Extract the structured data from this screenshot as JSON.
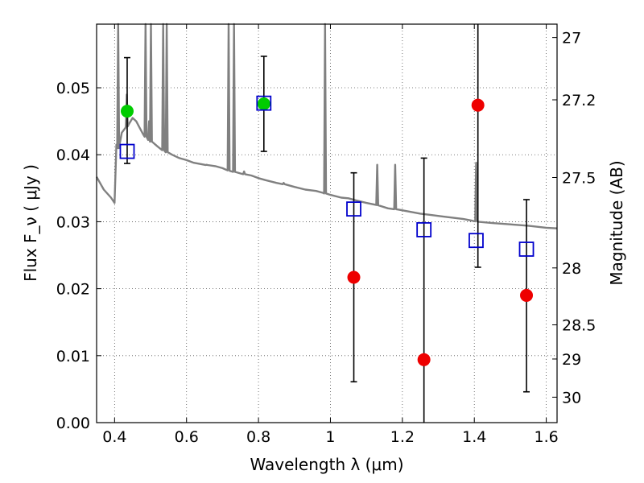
{
  "chart_data": {
    "type": "scatter",
    "xlabel": "Wavelength  λ (μm)",
    "ylabel": "Flux  F_ν  ( μJy )",
    "ylabel_right": "Magnitude (AB)",
    "xlim": [
      0.35,
      1.63
    ],
    "ylim": [
      0.0,
      0.0595
    ],
    "grid": true,
    "x_ticks": [
      0.4,
      0.6,
      0.8,
      1.0,
      1.2,
      1.4,
      1.6
    ],
    "x_tick_labels": [
      "0.4",
      "0.6",
      "0.8",
      "1",
      "1.2",
      "1.4",
      "1.6"
    ],
    "y_ticks": [
      0.0,
      0.01,
      0.02,
      0.03,
      0.04,
      0.05
    ],
    "y_tick_labels": [
      "0.00",
      "0.01",
      "0.02",
      "0.03",
      "0.04",
      "0.05"
    ],
    "right_ticks": [
      {
        "label": "27",
        "flux": 0.0575
      },
      {
        "label": "27.2",
        "flux": 0.0482
      },
      {
        "label": "27.5",
        "flux": 0.0366
      },
      {
        "label": "28",
        "flux": 0.0231
      },
      {
        "label": "28.5",
        "flux": 0.0146
      },
      {
        "label": "29",
        "flux": 0.0095
      },
      {
        "label": "30",
        "flux": 0.0038
      }
    ],
    "colors": {
      "model": "#808080",
      "detection": "#00cc00",
      "upper": "#ee0000",
      "model_point": "#0000cc",
      "errorbar": "#000000",
      "grid": "#555555"
    },
    "model_spectrum": {
      "x": [
        0.35,
        0.37,
        0.39,
        0.4,
        0.405,
        0.41,
        0.415,
        0.42,
        0.43,
        0.44,
        0.45,
        0.46,
        0.47,
        0.48,
        0.5,
        0.52,
        0.54,
        0.56,
        0.58,
        0.6,
        0.62,
        0.65,
        0.68,
        0.7,
        0.72,
        0.75,
        0.78,
        0.8,
        0.82,
        0.85,
        0.88,
        0.9,
        0.93,
        0.96,
        0.98,
        1.0,
        1.03,
        1.05,
        1.07,
        1.1,
        1.13,
        1.16,
        1.19,
        1.22,
        1.25,
        1.28,
        1.31,
        1.34,
        1.37,
        1.39,
        1.41,
        1.45,
        1.5,
        1.55,
        1.6,
        1.63
      ],
      "y": [
        0.0367,
        0.0348,
        0.0336,
        0.0328,
        0.0415,
        0.041,
        0.0418,
        0.0433,
        0.044,
        0.0446,
        0.0455,
        0.045,
        0.044,
        0.043,
        0.042,
        0.0412,
        0.0405,
        0.04,
        0.0395,
        0.0392,
        0.0388,
        0.0385,
        0.0383,
        0.038,
        0.0376,
        0.0372,
        0.0369,
        0.0365,
        0.0362,
        0.0358,
        0.0355,
        0.0352,
        0.0348,
        0.0346,
        0.0343,
        0.034,
        0.0336,
        0.0335,
        0.0332,
        0.0328,
        0.0325,
        0.032,
        0.0318,
        0.0315,
        0.0312,
        0.031,
        0.0308,
        0.0306,
        0.0304,
        0.0302,
        0.03,
        0.0298,
        0.0296,
        0.0294,
        0.0291,
        0.029
      ]
    },
    "emission_lines": [
      {
        "x": 0.41,
        "peak": 0.06
      },
      {
        "x": 0.434,
        "peak": 0.049
      },
      {
        "x": 0.486,
        "peak": 0.06
      },
      {
        "x": 0.496,
        "peak": 0.045
      },
      {
        "x": 0.501,
        "peak": 0.06
      },
      {
        "x": 0.535,
        "peak": 0.06
      },
      {
        "x": 0.545,
        "peak": 0.06
      },
      {
        "x": 0.656,
        "peak": 0.0385
      },
      {
        "x": 0.717,
        "peak": 0.06
      },
      {
        "x": 0.732,
        "peak": 0.06
      },
      {
        "x": 0.76,
        "peak": 0.0375
      },
      {
        "x": 0.87,
        "peak": 0.0358
      },
      {
        "x": 0.985,
        "peak": 0.06
      },
      {
        "x": 1.13,
        "peak": 0.0385
      },
      {
        "x": 1.18,
        "peak": 0.0385
      },
      {
        "x": 1.405,
        "peak": 0.0388
      }
    ],
    "points": [
      {
        "x": 0.435,
        "flux": 0.0465,
        "kind": "detection"
      },
      {
        "x": 0.815,
        "flux": 0.0476,
        "kind": "detection"
      },
      {
        "x": 1.065,
        "flux": 0.0217,
        "kind": "upper"
      },
      {
        "x": 1.26,
        "flux": 0.0094,
        "kind": "upper"
      },
      {
        "x": 1.41,
        "flux": 0.0474,
        "kind": "upper"
      },
      {
        "x": 1.545,
        "flux": 0.019,
        "kind": "upper"
      }
    ],
    "model_points": [
      {
        "x": 0.435,
        "flux": 0.0405
      },
      {
        "x": 0.815,
        "flux": 0.0477
      },
      {
        "x": 1.065,
        "flux": 0.0319
      },
      {
        "x": 1.26,
        "flux": 0.0288
      },
      {
        "x": 1.405,
        "flux": 0.0272
      },
      {
        "x": 1.545,
        "flux": 0.0259
      }
    ],
    "error_bars": [
      {
        "x": 0.435,
        "low": 0.0387,
        "high": 0.0545
      },
      {
        "x": 0.815,
        "low": 0.0405,
        "high": 0.0547
      },
      {
        "x": 1.065,
        "low": 0.0061,
        "high": 0.0373
      },
      {
        "x": 1.26,
        "low": 0.0,
        "high": 0.0395
      },
      {
        "x": 1.41,
        "low": 0.0232,
        "high": 0.0595
      },
      {
        "x": 1.545,
        "low": 0.0046,
        "high": 0.0333
      }
    ]
  }
}
